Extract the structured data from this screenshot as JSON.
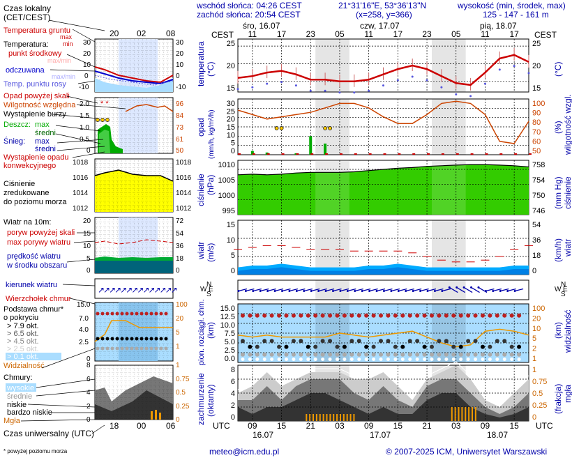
{
  "header": {
    "sunrise": "wschód słońca: 04:26 CEST",
    "sunset": "zachód słońca: 20:54 CEST",
    "coords": "21°31'16\"E, 53°36'13\"N",
    "grid": "(x=258, y=366)",
    "elev_title": "wysokość (min, środek, max)",
    "elev_values": "125 - 147 - 161 m",
    "days": [
      "śro, 16.07",
      "czw, 17.07",
      "pią, 18.07"
    ],
    "zone_top": "CEST",
    "zone_bottom": "UTC",
    "hours_top": [
      "11",
      "17",
      "23",
      "05",
      "11",
      "17",
      "23",
      "05",
      "11",
      "17"
    ],
    "hours_bottom": [
      "09",
      "15",
      "21",
      "03",
      "09",
      "15",
      "21",
      "03",
      "09",
      "15"
    ],
    "dates_bottom": [
      "16.07",
      "17.07",
      "18.07"
    ]
  },
  "legend": {
    "local_time": "Czas lokalny",
    "local_time2": "(CET/CEST)",
    "local_hours": [
      "20",
      "02",
      "08"
    ],
    "soil_temp": "Temperatura gruntu",
    "max_min": "max",
    "max_min2": "min",
    "temperature": "Temperatura:",
    "midpoint": "punkt środkowy",
    "max_min3": "max/min",
    "perceived": "odczuwana",
    "max_min4": "max/min",
    "dew": "Temp. punktu rosy",
    "precip_above": "Opad powyżej skali",
    "humidity": "Wilgotność względna",
    "storm": "Wystąpienie burzy",
    "rain": "Deszcz:",
    "rain_max": "max",
    "rain_avg": "średni",
    "snow": "Śnieg:",
    "snow_max": "max",
    "snow_avg": "średni",
    "precip_event": "Wystąpienie opadu",
    "precip_event2": "konwekcyjnego",
    "pressure": "Ciśnienie",
    "pressure2": "zredukowane",
    "pressure3": "do poziomu morza",
    "wind": "Wiatr na 10m:",
    "gust_above": "poryw powyżej skali",
    "max_gust": "max porywy wiatru",
    "wind_speed": "prędkość wiatru",
    "wind_speed2": "w środku obszaru",
    "wind_dir": "kierunek wiatru",
    "cloud_top": "Wierzchołek chmur",
    "cloud_base": "Podstawa chmur*",
    "cloud_base2": "o pokryciu",
    "okt": [
      "> 7.9 okt.",
      "> 6.5 okt.",
      "> 4.5 okt.",
      "> 2.5 okt.",
      "> 0.1 okt."
    ],
    "visibility": "Widzialność",
    "clouds": "Chmury:",
    "clouds_high": "wysokie",
    "clouds_mid": "średnie",
    "clouds_low": "niskie",
    "clouds_vlow": "bardzo niskie",
    "fog": "Mgła",
    "utc": "Czas uniwersalny (UTC)",
    "utc_hours": [
      "18",
      "00",
      "06"
    ],
    "footnote": "* powyżej poziomu morza"
  },
  "axes": {
    "temp_left": [
      "25",
      "20",
      "15"
    ],
    "temp_right": [
      "25",
      "20",
      "15"
    ],
    "temp_title": "temperatura",
    "temp_unit": "(°C)",
    "precip_left": [
      "30",
      "25",
      "20",
      "15",
      "10",
      "5",
      "0"
    ],
    "precip_right": [
      "100",
      "90",
      "80",
      "70",
      "60",
      "50"
    ],
    "precip_title": "opad",
    "precip_unit": "(mm/h, kg/m²/h)",
    "hum_title": "wilgotność wzgl.",
    "hum_unit": "(%)",
    "press_left": [
      "1010",
      "1005",
      "1000",
      "995"
    ],
    "press_right": [
      "758",
      "754",
      "750",
      "746"
    ],
    "press_title": "ciśnienie",
    "press_unit": "(hPa)",
    "press_unit2": "(mm Hg)",
    "wind_left": [
      "15",
      "10",
      "5",
      "0"
    ],
    "wind_right": [
      "54",
      "36",
      "18",
      "0"
    ],
    "wind_title": "wiatr",
    "wind_unit": "(m/s)",
    "wind_unit2": "(km/h)",
    "cloud_left": [
      "15.0",
      "12.5",
      "10.0",
      "7.5",
      "5.0",
      "2.5",
      "0.0"
    ],
    "cloud_right": [
      "100",
      "20",
      "10",
      "5",
      "2",
      "1"
    ],
    "cloud_title": "pion. rozciągł. chm.",
    "cloud_unit": "(km)",
    "vis_title": "widzialność",
    "vis_unit": "(km)",
    "cover_left": [
      "8",
      "6",
      "4",
      "2",
      "0"
    ],
    "cover_right": [
      "1",
      "0.75",
      "0.5",
      "0.25",
      "0"
    ],
    "cover_title": "zachmurzenie",
    "cover_unit": "(oktanty)",
    "fog_title": "(frakcja)",
    "fog_unit": "mgła"
  },
  "mini_axes": {
    "temp_left": [
      "30",
      "20",
      "10",
      "0",
      "-10"
    ],
    "temp_right": [
      "30",
      "20",
      "10",
      "0",
      "-10"
    ],
    "precip_left": [
      "2.0",
      "1.5",
      "1.0",
      "0.5",
      "0"
    ],
    "hum_right": [
      "96",
      "84",
      "73",
      "61",
      "50"
    ],
    "press_left": [
      "1018",
      "1016",
      "1014",
      "1012"
    ],
    "press_right": [
      "1018",
      "1016",
      "1014",
      "1012"
    ],
    "wind_left": [
      "20",
      "15",
      "10",
      "5",
      "0"
    ],
    "wind_right": [
      "72",
      "54",
      "36",
      "18",
      "0"
    ],
    "cloud_left": [
      "15.0",
      "7.0",
      "4.0",
      "2.5",
      "0"
    ],
    "cloud_right": [
      "100",
      "20",
      "5",
      "1"
    ],
    "cover_left": [
      "8",
      "6",
      "4",
      "2",
      "0"
    ],
    "cover_right": [
      "1",
      "0.75",
      "0.5",
      "0.25",
      "0"
    ]
  },
  "footer": {
    "email": "meteo@icm.edu.pl",
    "copyright": "© 2007-2025 ICM, Uniwersytet Warszawski"
  },
  "colors": {
    "temp": "#cc0000",
    "dew": "#5555dd",
    "humidity": "#cc4400",
    "pressure_fill": "#33cc00",
    "wind_fill": "#00aaff",
    "wind_dark": "#0033aa",
    "gust": "#cc0000",
    "cloud_sky": "#aaddff",
    "night_band": "#dddddd",
    "title_blue": "#0000aa",
    "axis_orange": "#cc6600"
  },
  "chart_data": [
    {
      "type": "line",
      "title": "temperatura",
      "ylabel": "(°C)",
      "ylim": [
        12,
        27
      ],
      "x_hours_utc": [
        6,
        9,
        12,
        15,
        18,
        21,
        24,
        27,
        30,
        33,
        36,
        39,
        42,
        45,
        48,
        51,
        54,
        57,
        60,
        63,
        66
      ],
      "series": [
        {
          "name": "punkt środkowy",
          "values": [
            16,
            16.5,
            17.5,
            18,
            17,
            15.5,
            15.5,
            15,
            15,
            15.5,
            17,
            18.5,
            19.5,
            18.5,
            16.5,
            14.5,
            14,
            17.5,
            21.5,
            22.5,
            20.5
          ]
        }
      ]
    },
    {
      "type": "bar",
      "title": "opad",
      "ylabel": "(mm/h, kg/m²/h)",
      "ylim": [
        0,
        30
      ],
      "x_hours_utc": [
        6,
        9,
        12,
        15,
        18,
        21,
        24,
        27,
        30,
        33,
        36,
        39,
        42,
        45,
        48,
        51,
        54,
        57,
        60,
        63,
        66
      ],
      "values": [
        0,
        0.5,
        0.3,
        0,
        0.2,
        2.5,
        1.5,
        0,
        0,
        0,
        0,
        0,
        0,
        0,
        0,
        0,
        0,
        0,
        0,
        0,
        0
      ]
    },
    {
      "type": "line",
      "title": "wilgotność wzgl.",
      "ylabel": "(%)",
      "ylim": [
        50,
        100
      ],
      "x_hours_utc": [
        6,
        9,
        12,
        15,
        18,
        21,
        24,
        27,
        30,
        33,
        36,
        39,
        42,
        45,
        48,
        51,
        54,
        57,
        60,
        63,
        66
      ],
      "series": [
        {
          "values": [
            90,
            86,
            82,
            84,
            86,
            88,
            92,
            96,
            96,
            92,
            84,
            78,
            78,
            86,
            96,
            98,
            96,
            86,
            62,
            60,
            80
          ]
        }
      ]
    },
    {
      "type": "area",
      "title": "ciśnienie",
      "ylabel": "(hPa)",
      "ylim": [
        995,
        1013
      ],
      "x_hours_utc": [
        6,
        9,
        12,
        15,
        18,
        21,
        24,
        27,
        30,
        33,
        36,
        39,
        42,
        45,
        48,
        51,
        54,
        57,
        60,
        63,
        66
      ],
      "values": [
        1008.2,
        1008.4,
        1008.2,
        1008.4,
        1008.8,
        1009,
        1009,
        1009,
        1009.2,
        1009.6,
        1010,
        1010.4,
        1010.6,
        1011,
        1011.2,
        1011.4,
        1011.6,
        1011.6,
        1011.4,
        1011.2,
        1010.8
      ]
    },
    {
      "type": "area",
      "title": "wiatr",
      "ylabel": "(m/s)",
      "ylim": [
        0,
        15
      ],
      "x_hours_utc": [
        6,
        9,
        12,
        15,
        18,
        21,
        24,
        27,
        30,
        33,
        36,
        39,
        42,
        45,
        48,
        51,
        54,
        57,
        60,
        63,
        66
      ],
      "series": [
        {
          "name": "prędkość wiatru",
          "values": [
            2,
            2.5,
            2.5,
            3,
            2.5,
            2,
            2,
            2,
            2,
            2.5,
            2.5,
            3,
            2.5,
            2,
            2,
            2,
            2,
            2,
            2,
            2.5,
            2.5
          ]
        },
        {
          "name": "max porywy wiatru",
          "values": [
            7,
            7.5,
            8,
            8,
            7.5,
            7,
            7,
            7,
            6.5,
            6.5,
            6.5,
            6.5,
            6,
            5,
            4,
            3.5,
            3.5,
            4,
            5,
            7,
            8
          ]
        }
      ]
    }
  ]
}
